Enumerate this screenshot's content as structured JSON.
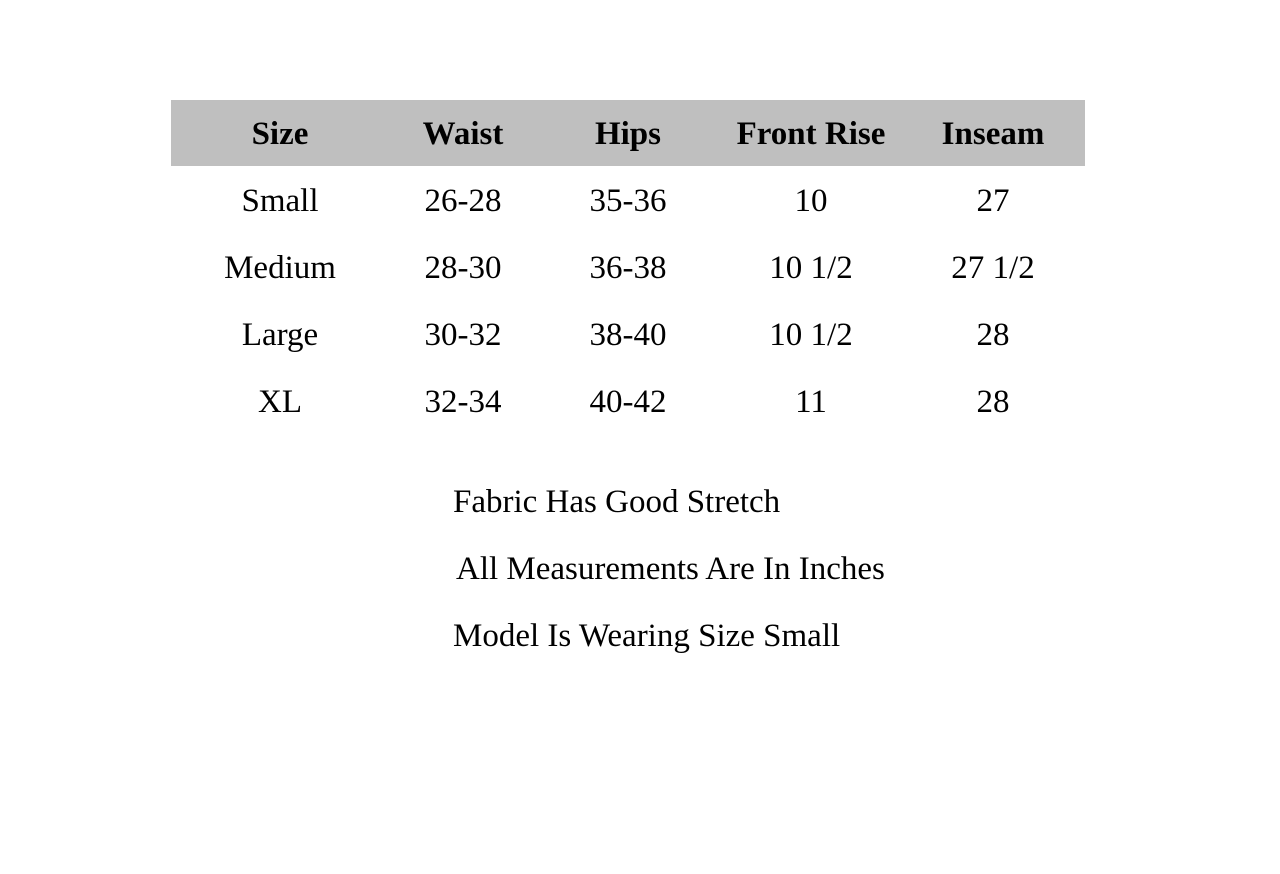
{
  "table": {
    "header_color": "#bfbfbf",
    "columns": [
      "Size",
      "Waist",
      "Hips",
      "Front Rise",
      "Inseam"
    ],
    "rows": [
      [
        "Small",
        "26-28",
        "35-36",
        "10",
        "27"
      ],
      [
        "Medium",
        "28-30",
        "36-38",
        "10 1/2",
        "27 1/2"
      ],
      [
        "Large",
        "30-32",
        "38-40",
        "10 1/2",
        "28"
      ],
      [
        "XL",
        "32-34",
        "40-42",
        "11",
        "28"
      ]
    ]
  },
  "notes": [
    "Fabric Has Good Stretch",
    "All Measurements Are In Inches",
    "Model Is Wearing Size Small"
  ]
}
